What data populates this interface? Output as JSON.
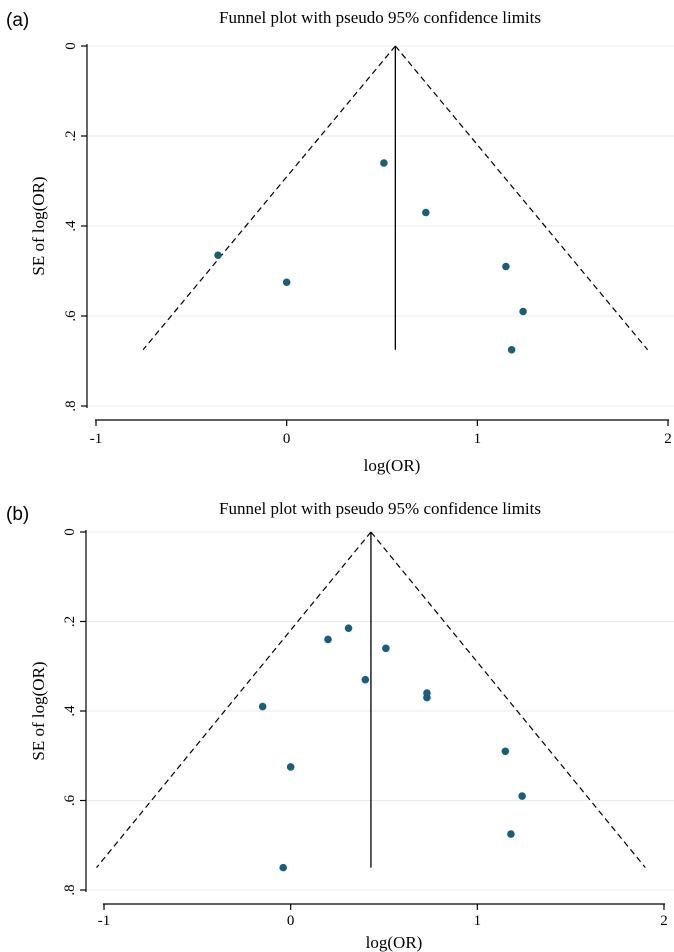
{
  "chart_data": [
    {
      "type": "scatter",
      "panel_label": "(a)",
      "title": "Funnel plot with pseudo 95% confidence limits",
      "xlabel": "log(OR)",
      "ylabel": "SE of log(OR)",
      "xlim": [
        -1,
        2
      ],
      "ylim": [
        0,
        0.8
      ],
      "y_reversed": true,
      "x_ticks": [
        -1,
        0,
        1,
        2
      ],
      "x_tick_labels": [
        "-1",
        "0",
        "1",
        "2"
      ],
      "y_ticks": [
        0,
        0.2,
        0.4,
        0.6,
        0.8
      ],
      "y_tick_labels": [
        "0",
        ".2",
        ".4",
        ".6",
        ".8"
      ],
      "grid": "horizontal",
      "pooled_estimate": 0.57,
      "se_max": 0.675,
      "confidence_limits": "pseudo 95%",
      "points": [
        {
          "x": 0.51,
          "y": 0.26
        },
        {
          "x": 0.73,
          "y": 0.37
        },
        {
          "x": -0.36,
          "y": 0.465
        },
        {
          "x": 1.15,
          "y": 0.49
        },
        {
          "x": 0.0,
          "y": 0.525
        },
        {
          "x": 1.24,
          "y": 0.59
        },
        {
          "x": 1.18,
          "y": 0.675
        }
      ]
    },
    {
      "type": "scatter",
      "panel_label": "(b)",
      "title": "Funnel plot with pseudo 95% confidence limits",
      "xlabel": "log(OR)",
      "ylabel": "SE of log(OR)",
      "xlim": [
        -1,
        2
      ],
      "ylim": [
        0,
        0.8
      ],
      "y_reversed": true,
      "x_ticks": [
        -1,
        0,
        1,
        2
      ],
      "x_tick_labels": [
        "-1",
        "0",
        "1",
        "2"
      ],
      "y_ticks": [
        0,
        0.2,
        0.4,
        0.6,
        0.8
      ],
      "y_tick_labels": [
        "0",
        ".2",
        ".4",
        ".6",
        ".8"
      ],
      "grid": "horizontal",
      "pooled_estimate": 0.43,
      "se_max": 0.75,
      "confidence_limits": "pseudo 95%",
      "points": [
        {
          "x": 0.31,
          "y": 0.215
        },
        {
          "x": 0.2,
          "y": 0.24
        },
        {
          "x": 0.51,
          "y": 0.26
        },
        {
          "x": 0.4,
          "y": 0.33
        },
        {
          "x": 0.73,
          "y": 0.36
        },
        {
          "x": 0.73,
          "y": 0.37
        },
        {
          "x": -0.15,
          "y": 0.39
        },
        {
          "x": 1.15,
          "y": 0.49
        },
        {
          "x": 0.0,
          "y": 0.525
        },
        {
          "x": 1.24,
          "y": 0.59
        },
        {
          "x": 1.18,
          "y": 0.675
        },
        {
          "x": -0.04,
          "y": 0.75
        }
      ]
    }
  ],
  "colors": {
    "points": "#1a5f7a",
    "grid": "#e4ecf2",
    "axes": "#000000"
  }
}
